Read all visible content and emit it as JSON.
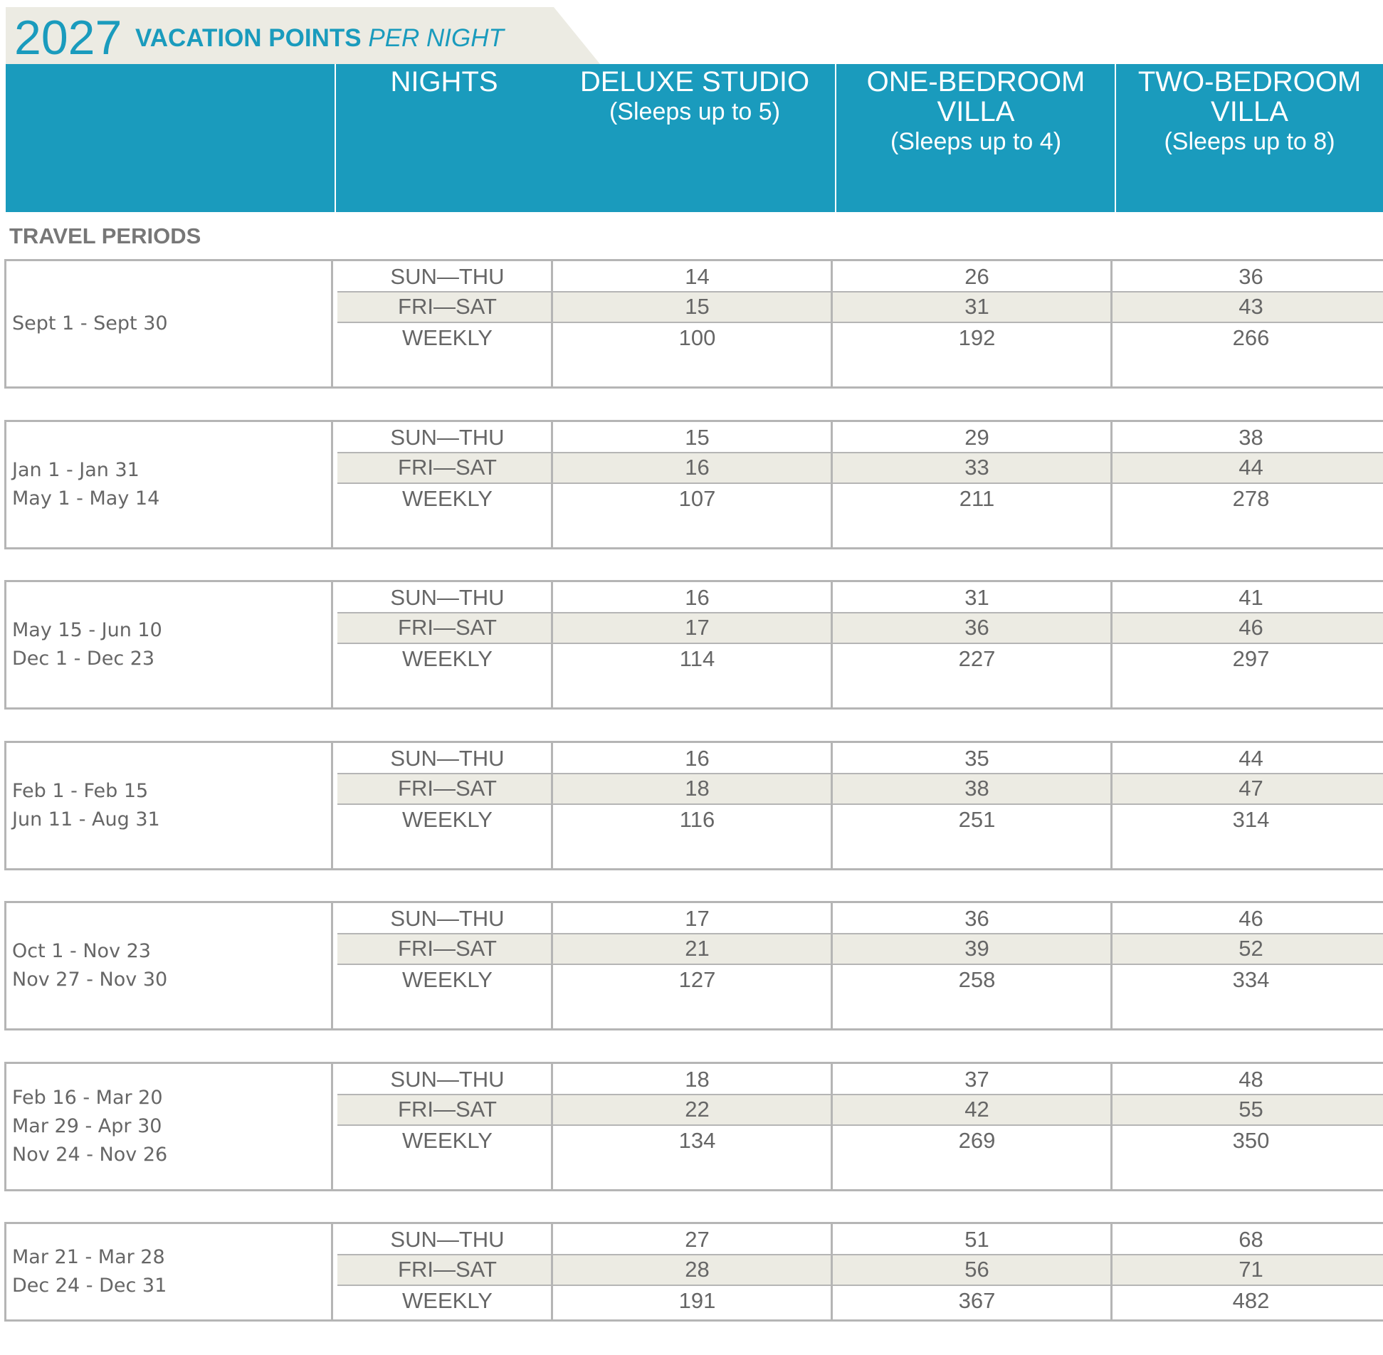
{
  "title": {
    "year": "2027",
    "bold": "VACATION POINTS",
    "italic": "PER NIGHT"
  },
  "colors": {
    "header_blue": "#1a9bbd",
    "tab_beige": "#ecebe3",
    "row_shade": "#ecebe3",
    "rule_gray": "#b5b5b5"
  },
  "header": {
    "nights": "NIGHTS",
    "col1": {
      "name": "DELUXE STUDIO",
      "sub": "(Sleeps up to 5)"
    },
    "col2": {
      "name_line1": "ONE-BEDROOM",
      "name_line2": "VILLA",
      "sub": "(Sleeps up to 4)"
    },
    "col3": {
      "name_line1": "TWO-BEDROOM",
      "name_line2": "VILLA",
      "sub": "(Sleeps up to 8)"
    }
  },
  "travel_periods_label": "TRAVEL PERIODS",
  "blocks": [
    {
      "periods": [
        "Sept 1 - Sept 30"
      ],
      "rows": [
        {
          "nights": "SUN—THU",
          "studio": "14",
          "one": "26",
          "two": "36"
        },
        {
          "nights": "FRI—SAT",
          "studio": "15",
          "one": "31",
          "two": "43"
        },
        {
          "nights": "WEEKLY",
          "studio": "100",
          "one": "192",
          "two": "266"
        }
      ]
    },
    {
      "periods": [
        "Jan 1 - Jan 31",
        "May 1 - May 14"
      ],
      "rows": [
        {
          "nights": "SUN—THU",
          "studio": "15",
          "one": "29",
          "two": "38"
        },
        {
          "nights": "FRI—SAT",
          "studio": "16",
          "one": "33",
          "two": "44"
        },
        {
          "nights": "WEEKLY",
          "studio": "107",
          "one": "211",
          "two": "278"
        }
      ]
    },
    {
      "periods": [
        "May 15 - Jun 10",
        "Dec 1 - Dec 23"
      ],
      "rows": [
        {
          "nights": "SUN—THU",
          "studio": "16",
          "one": "31",
          "two": "41"
        },
        {
          "nights": "FRI—SAT",
          "studio": "17",
          "one": "36",
          "two": "46"
        },
        {
          "nights": "WEEKLY",
          "studio": "114",
          "one": "227",
          "two": "297"
        }
      ]
    },
    {
      "periods": [
        "Feb 1 - Feb 15",
        "Jun 11 - Aug 31"
      ],
      "rows": [
        {
          "nights": "SUN—THU",
          "studio": "16",
          "one": "35",
          "two": "44"
        },
        {
          "nights": "FRI—SAT",
          "studio": "18",
          "one": "38",
          "two": "47"
        },
        {
          "nights": "WEEKLY",
          "studio": "116",
          "one": "251",
          "two": "314"
        }
      ]
    },
    {
      "periods": [
        "Oct 1 - Nov 23",
        "Nov 27 - Nov 30"
      ],
      "rows": [
        {
          "nights": "SUN—THU",
          "studio": "17",
          "one": "36",
          "two": "46"
        },
        {
          "nights": "FRI—SAT",
          "studio": "21",
          "one": "39",
          "two": "52"
        },
        {
          "nights": "WEEKLY",
          "studio": "127",
          "one": "258",
          "two": "334"
        }
      ]
    },
    {
      "periods": [
        "Feb 16 - Mar 20",
        "Mar 29 - Apr 30",
        "Nov 24 - Nov 26"
      ],
      "rows": [
        {
          "nights": "SUN—THU",
          "studio": "18",
          "one": "37",
          "two": "48"
        },
        {
          "nights": "FRI—SAT",
          "studio": "22",
          "one": "42",
          "two": "55"
        },
        {
          "nights": "WEEKLY",
          "studio": "134",
          "one": "269",
          "two": "350"
        }
      ]
    },
    {
      "periods": [
        "Mar 21 - Mar 28",
        "Dec 24 - Dec 31"
      ],
      "rows": [
        {
          "nights": "SUN—THU",
          "studio": "27",
          "one": "51",
          "two": "68"
        },
        {
          "nights": "FRI—SAT",
          "studio": "28",
          "one": "56",
          "two": "71"
        },
        {
          "nights": "WEEKLY",
          "studio": "191",
          "one": "367",
          "two": "482"
        }
      ]
    }
  ]
}
